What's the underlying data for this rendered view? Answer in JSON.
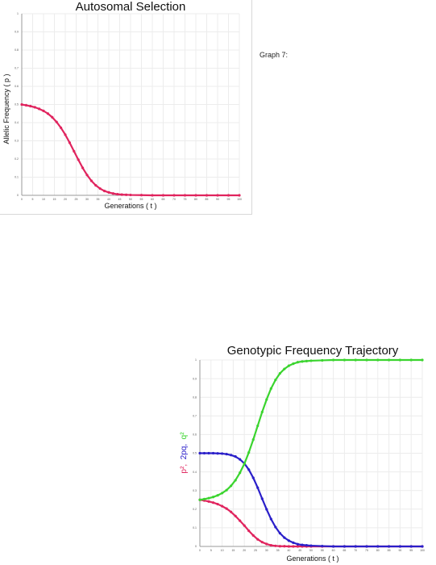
{
  "graph_label": "Graph 7:",
  "chart_data": [
    {
      "type": "scatter",
      "title": "Autosomal Selection",
      "xlabel": "Generations ( t )",
      "ylabel": "Allelic Frequency ( p )",
      "xlim": [
        0,
        100
      ],
      "ylim": [
        0,
        1
      ],
      "x_ticks": [
        0,
        5,
        10,
        15,
        20,
        25,
        30,
        35,
        40,
        45,
        50,
        55,
        60,
        65,
        70,
        75,
        80,
        85,
        90,
        95,
        100
      ],
      "y_ticks": [
        0,
        0.1,
        0.2,
        0.3,
        0.4,
        0.5,
        0.6,
        0.7,
        0.8,
        0.9,
        1
      ],
      "grid": true,
      "series": [
        {
          "color": "#e0245e",
          "x": [
            0,
            2,
            4,
            6,
            8,
            10,
            12,
            14,
            16,
            18,
            20,
            22,
            24,
            26,
            28,
            30,
            32,
            34,
            36,
            38,
            40,
            42,
            44,
            46,
            48,
            50,
            55,
            60,
            65,
            70,
            75,
            80,
            85,
            90,
            95,
            100
          ],
          "y": [
            0.5,
            0.496,
            0.491,
            0.485,
            0.476,
            0.465,
            0.45,
            0.43,
            0.404,
            0.372,
            0.334,
            0.29,
            0.243,
            0.196,
            0.151,
            0.112,
            0.08,
            0.055,
            0.037,
            0.024,
            0.016,
            0.01,
            0.006,
            0.004,
            0.003,
            0.002,
            0.001,
            0.0,
            0.0,
            0.0,
            0.0,
            0.0,
            0.0,
            0.0,
            0.0,
            0.0
          ]
        }
      ]
    },
    {
      "type": "scatter",
      "title": "Genotypic Frequency Trajectory",
      "xlabel": "Generations ( t )",
      "ylabel_parts": [
        "p²,",
        "2pq,",
        "q²"
      ],
      "ylabel_colors": [
        "#e0245e",
        "#2a1fc9",
        "#3ad42e"
      ],
      "xlim": [
        0,
        100
      ],
      "ylim": [
        0,
        1
      ],
      "x_ticks": [
        0,
        5,
        10,
        15,
        20,
        25,
        30,
        35,
        40,
        45,
        50,
        55,
        60,
        65,
        70,
        75,
        80,
        85,
        90,
        95,
        100
      ],
      "y_ticks": [
        0,
        0.1,
        0.2,
        0.3,
        0.4,
        0.5,
        0.6,
        0.7,
        0.8,
        0.9,
        1
      ],
      "grid": true,
      "x": [
        0,
        2,
        4,
        6,
        8,
        10,
        12,
        14,
        16,
        18,
        20,
        22,
        24,
        26,
        28,
        30,
        32,
        34,
        36,
        38,
        40,
        42,
        44,
        46,
        48,
        50,
        55,
        60,
        65,
        70,
        75,
        80,
        85,
        90,
        95,
        100
      ],
      "series": [
        {
          "color": "#e0245e",
          "values": [
            0.25,
            0.246,
            0.241,
            0.235,
            0.227,
            0.216,
            0.203,
            0.185,
            0.163,
            0.138,
            0.112,
            0.084,
            0.059,
            0.038,
            0.023,
            0.013,
            0.006,
            0.003,
            0.001,
            0.001,
            0.0,
            0.0,
            0.0,
            0.0,
            0.0,
            0.0,
            0.0,
            0.0,
            0.0,
            0.0,
            0.0,
            0.0,
            0.0,
            0.0,
            0.0,
            0.0
          ]
        },
        {
          "color": "#2a1fc9",
          "values": [
            0.5,
            0.5,
            0.5,
            0.5,
            0.499,
            0.498,
            0.495,
            0.49,
            0.482,
            0.467,
            0.445,
            0.412,
            0.368,
            0.315,
            0.256,
            0.199,
            0.147,
            0.104,
            0.071,
            0.047,
            0.031,
            0.02,
            0.012,
            0.008,
            0.006,
            0.004,
            0.002,
            0.0,
            0.0,
            0.0,
            0.0,
            0.0,
            0.0,
            0.0,
            0.0,
            0.0
          ]
        },
        {
          "color": "#3ad42e",
          "values": [
            0.25,
            0.254,
            0.259,
            0.265,
            0.274,
            0.286,
            0.302,
            0.325,
            0.355,
            0.395,
            0.443,
            0.504,
            0.573,
            0.647,
            0.721,
            0.788,
            0.847,
            0.893,
            0.928,
            0.952,
            0.969,
            0.98,
            0.988,
            0.992,
            0.994,
            0.996,
            0.998,
            1.0,
            1.0,
            1.0,
            1.0,
            1.0,
            1.0,
            1.0,
            1.0,
            1.0
          ]
        }
      ]
    }
  ]
}
